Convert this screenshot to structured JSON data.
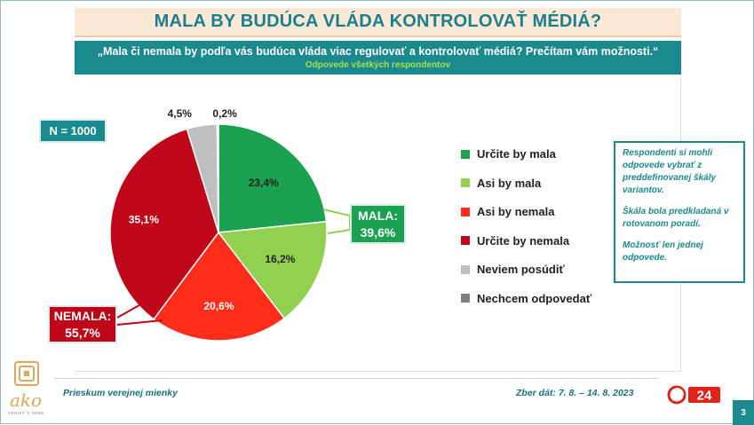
{
  "header": {
    "title": "MALA BY BUDÚCA VLÁDA KONTROLOVAŤ MÉDIÁ?",
    "question": "„Mala či nemala by podľa vás budúca vláda viac regulovať a kontrolovať médiá? Prečítam vám možnosti.“",
    "subtitle": "Odpovede všetkých respondentov"
  },
  "sample": {
    "label": "N = 1000"
  },
  "chart_data": {
    "type": "pie",
    "title": "",
    "slices": [
      {
        "label": "Určite by mala",
        "value": 23.4,
        "display": "23,4%",
        "color": "#1aa251"
      },
      {
        "label": "Asi by mala",
        "value": 16.2,
        "display": "16,2%",
        "color": "#92d050"
      },
      {
        "label": "Asi by nemala",
        "value": 20.6,
        "display": "20,6%",
        "color": "#ff2d1a"
      },
      {
        "label": "Určite by nemala",
        "value": 35.1,
        "display": "35,1%",
        "color": "#c0071a"
      },
      {
        "label": "Neviem posúdiť",
        "value": 4.5,
        "display": "4,5%",
        "color": "#bfbfbf"
      },
      {
        "label": "Nechcem odpovedať",
        "value": 0.2,
        "display": "0,2%",
        "color": "#808080"
      }
    ],
    "legend_position": "right"
  },
  "callouts": {
    "mala": {
      "label": "MALA:",
      "value": "39,6%"
    },
    "nemala": {
      "label": "NEMALA:",
      "value": "55,7%"
    }
  },
  "note": {
    "p1": "Respondenti si mohli odpovede vybrať z preddefinovanej škály variantov.",
    "p2": "Škála bola predkladaná v rotovanom poradí.",
    "p3": "Možnosť len jednej odpovede."
  },
  "footer": {
    "left": "Prieskum verejnej mienky",
    "right": "Zber dát: 7. 8. – 14. 8. 2023",
    "page": "3",
    "brand": "ako",
    "brand_sub": "VEDIEŤ O SEBE",
    "tv": "24"
  }
}
